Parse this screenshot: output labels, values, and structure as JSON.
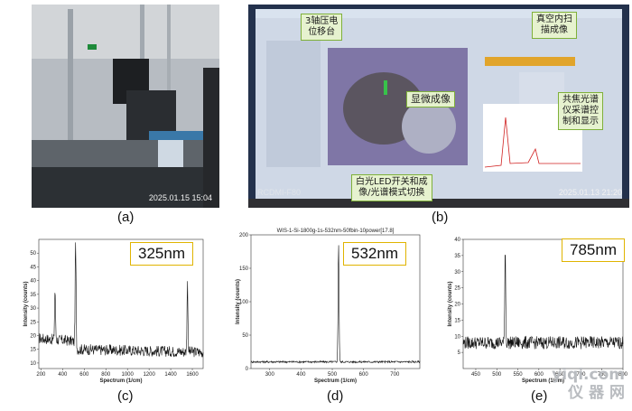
{
  "panels": {
    "a": {
      "caption": "(a)",
      "timestamp": "2025.01.15 15:04"
    },
    "b": {
      "caption": "(b)",
      "timestamp": "2025.01.13 21:20",
      "camera_label": "RCDMI-F80",
      "tags": {
        "stage": "3轴压电\n位移台",
        "vacuum": "真空内扫\n描成像",
        "micro": "显微成像",
        "spectro": "共焦光谱\n仪采谱控\n制和显示",
        "led": "白光LED开关和成\n像/光谱模式切换"
      }
    },
    "c": {
      "caption": "(c)",
      "label": "325nm"
    },
    "d": {
      "caption": "(d)",
      "label": "532nm"
    },
    "e": {
      "caption": "(e)",
      "label": "785nm"
    }
  },
  "watermark": {
    "line1": "yiqi.com",
    "line2": "仪 器 网"
  },
  "chart_data": [
    {
      "type": "line",
      "title": "",
      "xlabel": "Spectrum (1/cm)",
      "ylabel": "Intensity (counts)",
      "xlim": [
        180,
        1700
      ],
      "ylim": [
        8,
        55
      ],
      "xticks": [
        200,
        400,
        600,
        800,
        1000,
        1200,
        1400,
        1600
      ],
      "yticks": [
        10,
        15,
        20,
        25,
        30,
        35,
        40,
        45,
        50
      ],
      "baseline": [
        [
          180,
          19
        ],
        [
          500,
          18
        ],
        [
          540,
          15
        ],
        [
          1700,
          14
        ]
      ],
      "peaks": [
        {
          "x": 330,
          "y": 37
        },
        {
          "x": 520,
          "y": 54
        },
        {
          "x": 1555,
          "y": 39
        }
      ],
      "noise": 2
    },
    {
      "type": "line",
      "title": "WIS-1-Si-1800g-1s-532nm-50fbin-10power[17.8]",
      "xlabel": "Spectrum (1/cm)",
      "ylabel": "Intensity (counts)",
      "xlim": [
        240,
        780
      ],
      "ylim": [
        0,
        200
      ],
      "xticks": [
        300,
        400,
        500,
        600,
        700
      ],
      "yticks": [
        0,
        50,
        100,
        150,
        200
      ],
      "baseline": [
        [
          240,
          10
        ],
        [
          780,
          10
        ]
      ],
      "peaks": [
        {
          "x": 520,
          "y": 188
        }
      ],
      "noise": 1.5
    },
    {
      "type": "line",
      "title": "",
      "xlabel": "Spectrum (1/cm)",
      "ylabel": "Intensity (counts)",
      "xlim": [
        420,
        800
      ],
      "ylim": [
        0,
        40
      ],
      "xticks": [
        450,
        500,
        550,
        600,
        650,
        700,
        750,
        800
      ],
      "yticks": [
        5,
        10,
        15,
        20,
        25,
        30,
        35,
        40
      ],
      "baseline": [
        [
          420,
          8
        ],
        [
          800,
          8
        ]
      ],
      "peaks": [
        {
          "x": 520,
          "y": 38
        }
      ],
      "noise": 2
    }
  ]
}
